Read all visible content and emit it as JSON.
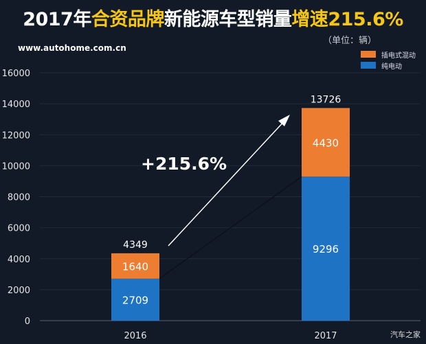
{
  "title": {
    "part1": "2017年",
    "part2": "合资品牌",
    "part3": "新能源车型销量",
    "part4": "增速215.6%"
  },
  "unit_label": "（单位：辆）",
  "site": "www.autohome.com.cn",
  "watermark": "汽车之家",
  "colors": {
    "phev": "#ed7d31",
    "bev": "#1f73c5",
    "highlight": "#f5c518",
    "background": "#121a27"
  },
  "chart_data": {
    "type": "bar",
    "stacked": true,
    "categories": [
      "2016",
      "2017"
    ],
    "series": [
      {
        "name": "纯电动",
        "values": [
          2709,
          9296
        ],
        "color": "#1f73c5"
      },
      {
        "name": "插电式混动",
        "values": [
          1640,
          4430
        ],
        "color": "#ed7d31"
      }
    ],
    "totals": [
      4349,
      13726
    ],
    "ylim": [
      0,
      16000
    ],
    "yticks": [
      0,
      2000,
      4000,
      6000,
      8000,
      10000,
      12000,
      14000,
      16000
    ],
    "annotation": "+215.6%",
    "grid": true,
    "legend": "top-right"
  }
}
